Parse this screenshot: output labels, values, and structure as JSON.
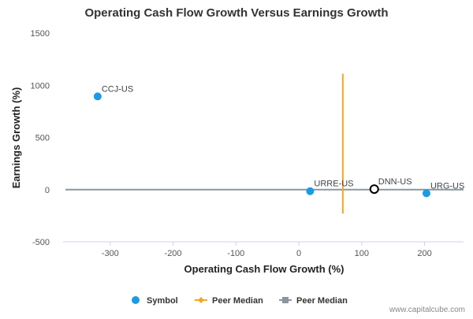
{
  "chart_data": {
    "type": "scatter",
    "title": "Operating Cash Flow Growth Versus Earnings Growth",
    "xlabel": "Operating Cash Flow Growth (%)",
    "ylabel": "Earnings Growth (%)",
    "xlim": [
      -375,
      262
    ],
    "ylim": [
      -500,
      1500
    ],
    "xticks": [
      -300,
      -200,
      -100,
      0,
      100,
      200
    ],
    "yticks": [
      -500,
      0,
      500,
      1000,
      1500
    ],
    "grid": false,
    "legend_position": "bottom",
    "points": [
      {
        "label": "CCJ-US",
        "x": -320,
        "y": 893,
        "kind": "symbol"
      },
      {
        "label": "URRE-US",
        "x": 18,
        "y": -15,
        "kind": "symbol"
      },
      {
        "label": "DNN-US",
        "x": 120,
        "y": 5,
        "kind": "highlight"
      },
      {
        "label": "URG-US",
        "x": 203,
        "y": -35,
        "kind": "symbol"
      }
    ],
    "peer_median_x": {
      "name": "Peer Median",
      "value": 70,
      "y_range": [
        -230,
        1110
      ],
      "color": "#f5a623"
    },
    "peer_median_y": {
      "name": "Peer Median",
      "value": 0,
      "color": "#8c96a0"
    },
    "legend": [
      {
        "name": "Symbol",
        "color": "#1a9be6",
        "marker": "circle"
      },
      {
        "name": "Peer Median",
        "color": "#f5a623",
        "marker": "diamond-line"
      },
      {
        "name": "Peer Median",
        "color": "#8c96a0",
        "marker": "square-line"
      }
    ],
    "colors": {
      "symbol": "#1a9be6",
      "highlight_stroke": "#000000",
      "axis": "#ccd6eb"
    }
  },
  "watermark": "www.capitalcube.com"
}
